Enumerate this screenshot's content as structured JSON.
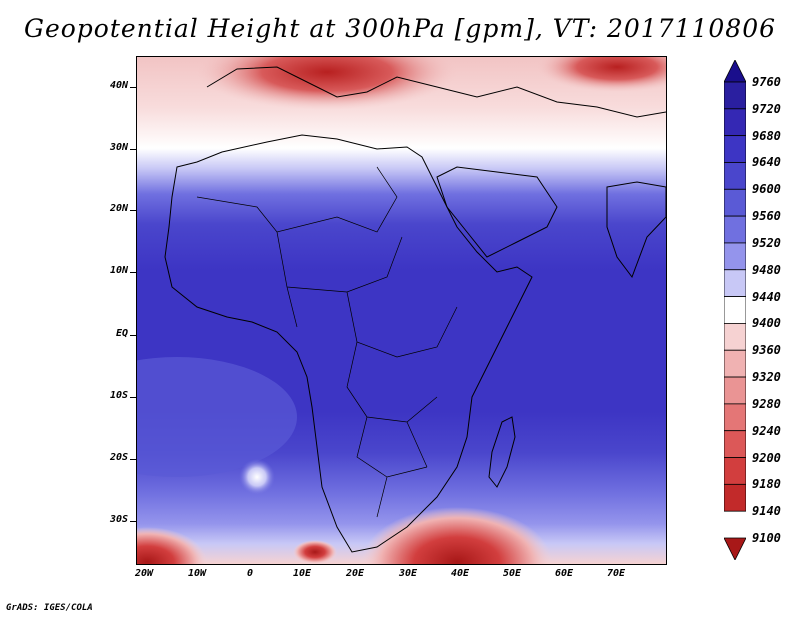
{
  "title": "Geopotential Height at 300hPa [gpm], VT: 2017110806",
  "credit": "GrADS: IGES/COLA",
  "lat_labels": [
    "40N",
    "30N",
    "20N",
    "10N",
    "EQ",
    "10S",
    "20S",
    "30S"
  ],
  "lon_labels": [
    "20W",
    "10W",
    "0",
    "10E",
    "20E",
    "30E",
    "40E",
    "50E",
    "60E",
    "70E"
  ],
  "colorbar": {
    "levels": [
      "9760",
      "9720",
      "9680",
      "9640",
      "9600",
      "9560",
      "9520",
      "9480",
      "9440",
      "9400",
      "9360",
      "9320",
      "9280",
      "9240",
      "9200",
      "9180",
      "9140",
      "9100"
    ],
    "colors": [
      "#1a0e8c",
      "#2a1fa0",
      "#3428b4",
      "#3d35c4",
      "#4a46cc",
      "#5a5ad6",
      "#7070e0",
      "#9494ec",
      "#c8c8f6",
      "#ffffff",
      "#f6d2d2",
      "#f0b2b2",
      "#ea9494",
      "#e47676",
      "#dc5858",
      "#d23e3e",
      "#c22a2a",
      "#a81818"
    ]
  }
}
